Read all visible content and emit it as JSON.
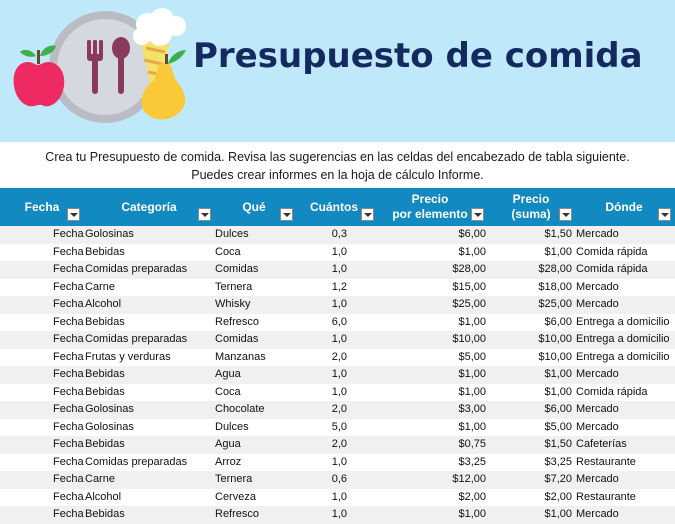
{
  "header": {
    "title": "Presupuesto de comida"
  },
  "intro": {
    "line1": "Crea tu Presupuesto de comida. Revisa las sugerencias en las celdas del encabezado de tabla siguiente.",
    "line2": "Puedes crear informes en la hoja de cálculo Informe."
  },
  "columns": {
    "fecha": "Fecha",
    "categoria": "Categoría",
    "que": "Qué",
    "cuantos": "Cuántos",
    "precio_l1": "Precio",
    "precio_l2": "por elemento",
    "suma_l1": "Precio",
    "suma_l2": "(suma)",
    "donde": "Dónde"
  },
  "rows": [
    {
      "fecha": "Fecha",
      "categoria": "Golosinas",
      "que": "Dulces",
      "cuantos": "0,3",
      "precio": "$6,00",
      "suma": "$1,50",
      "donde": "Mercado"
    },
    {
      "fecha": "Fecha",
      "categoria": "Bebidas",
      "que": "Coca",
      "cuantos": "1,0",
      "precio": "$1,00",
      "suma": "$1,00",
      "donde": "Comida rápida"
    },
    {
      "fecha": "Fecha",
      "categoria": "Comidas preparadas",
      "que": "Comidas",
      "cuantos": "1,0",
      "precio": "$28,00",
      "suma": "$28,00",
      "donde": "Comida rápida"
    },
    {
      "fecha": "Fecha",
      "categoria": "Carne",
      "que": "Ternera",
      "cuantos": "1,2",
      "precio": "$15,00",
      "suma": "$18,00",
      "donde": "Mercado"
    },
    {
      "fecha": "Fecha",
      "categoria": "Alcohol",
      "que": "Whisky",
      "cuantos": "1,0",
      "precio": "$25,00",
      "suma": "$25,00",
      "donde": "Mercado"
    },
    {
      "fecha": "Fecha",
      "categoria": "Bebidas",
      "que": "Refresco",
      "cuantos": "6,0",
      "precio": "$1,00",
      "suma": "$6,00",
      "donde": "Entrega a domicilio"
    },
    {
      "fecha": "Fecha",
      "categoria": "Comidas preparadas",
      "que": "Comidas",
      "cuantos": "1,0",
      "precio": "$10,00",
      "suma": "$10,00",
      "donde": "Entrega a domicilio"
    },
    {
      "fecha": "Fecha",
      "categoria": "Frutas y verduras",
      "que": "Manzanas",
      "cuantos": "2,0",
      "precio": "$5,00",
      "suma": "$10,00",
      "donde": "Entrega a domicilio"
    },
    {
      "fecha": "Fecha",
      "categoria": "Bebidas",
      "que": "Agua",
      "cuantos": "1,0",
      "precio": "$1,00",
      "suma": "$1,00",
      "donde": "Mercado"
    },
    {
      "fecha": "Fecha",
      "categoria": "Bebidas",
      "que": "Coca",
      "cuantos": "1,0",
      "precio": "$1,00",
      "suma": "$1,00",
      "donde": "Comida rápida"
    },
    {
      "fecha": "Fecha",
      "categoria": "Golosinas",
      "que": "Chocolate",
      "cuantos": "2,0",
      "precio": "$3,00",
      "suma": "$6,00",
      "donde": "Mercado"
    },
    {
      "fecha": "Fecha",
      "categoria": "Golosinas",
      "que": "Dulces",
      "cuantos": "5,0",
      "precio": "$1,00",
      "suma": "$5,00",
      "donde": "Mercado"
    },
    {
      "fecha": "Fecha",
      "categoria": "Bebidas",
      "que": "Agua",
      "cuantos": "2,0",
      "precio": "$0,75",
      "suma": "$1,50",
      "donde": "Cafeterías"
    },
    {
      "fecha": "Fecha",
      "categoria": "Comidas preparadas",
      "que": "Arroz",
      "cuantos": "1,0",
      "precio": "$3,25",
      "suma": "$3,25",
      "donde": "Restaurante"
    },
    {
      "fecha": "Fecha",
      "categoria": "Carne",
      "que": "Ternera",
      "cuantos": "0,6",
      "precio": "$12,00",
      "suma": "$7,20",
      "donde": "Mercado"
    },
    {
      "fecha": "Fecha",
      "categoria": "Alcohol",
      "que": "Cerveza",
      "cuantos": "1,0",
      "precio": "$2,00",
      "suma": "$2,00",
      "donde": "Restaurante"
    },
    {
      "fecha": "Fecha",
      "categoria": "Bebidas",
      "que": "Refresco",
      "cuantos": "1,0",
      "precio": "$1,00",
      "suma": "$1,00",
      "donde": "Mercado"
    }
  ],
  "colors": {
    "banner": "#bfe9fb",
    "title": "#14295e",
    "header": "#1289c0",
    "row_alt": "#f0f0f0"
  },
  "icons": {
    "illustration": "food-illustration-icon",
    "filter": "filter-dropdown-icon"
  }
}
